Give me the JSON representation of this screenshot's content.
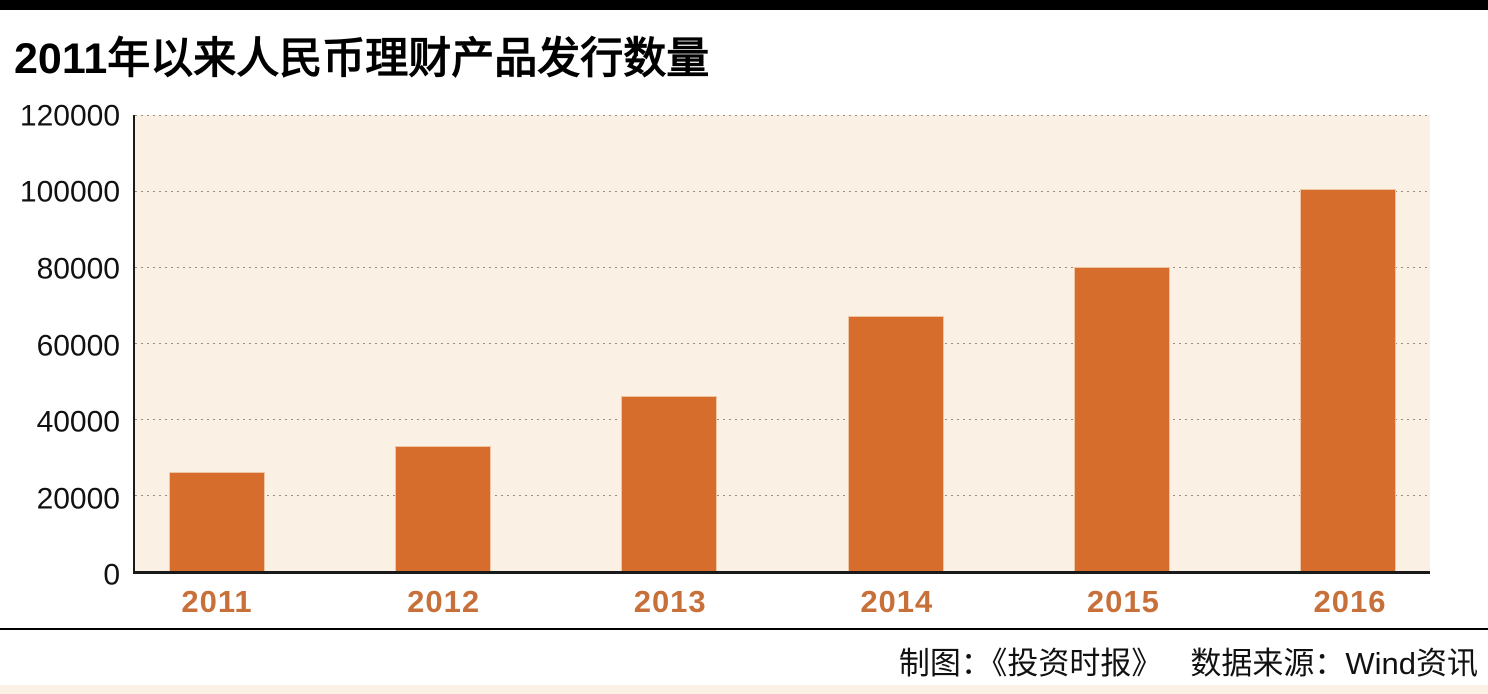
{
  "header": {
    "title": "2011年以来人民币理财产品发行数量"
  },
  "chart_data": {
    "type": "bar",
    "title": "2011年以来人民币理财产品发行数量",
    "categories": [
      "2011",
      "2012",
      "2013",
      "2014",
      "2015",
      "2016"
    ],
    "values": [
      26000,
      33000,
      46000,
      67000,
      80000,
      100500
    ],
    "xlabel": "",
    "ylabel": "",
    "ylim": [
      0,
      120000
    ],
    "y_ticks": [
      0,
      20000,
      40000,
      60000,
      80000,
      100000,
      120000
    ],
    "grid": true,
    "legend": "none",
    "bar_color": "#d76d2d",
    "plot_bg": "#faf1e4",
    "x_label_color": "#c8703a"
  },
  "footer": {
    "credit": "制图：《投资时报》",
    "source": "数据来源：Wind资讯"
  },
  "accents": {
    "top_bar_color": "#000000",
    "bottom_band_color": "#faf1e4"
  }
}
